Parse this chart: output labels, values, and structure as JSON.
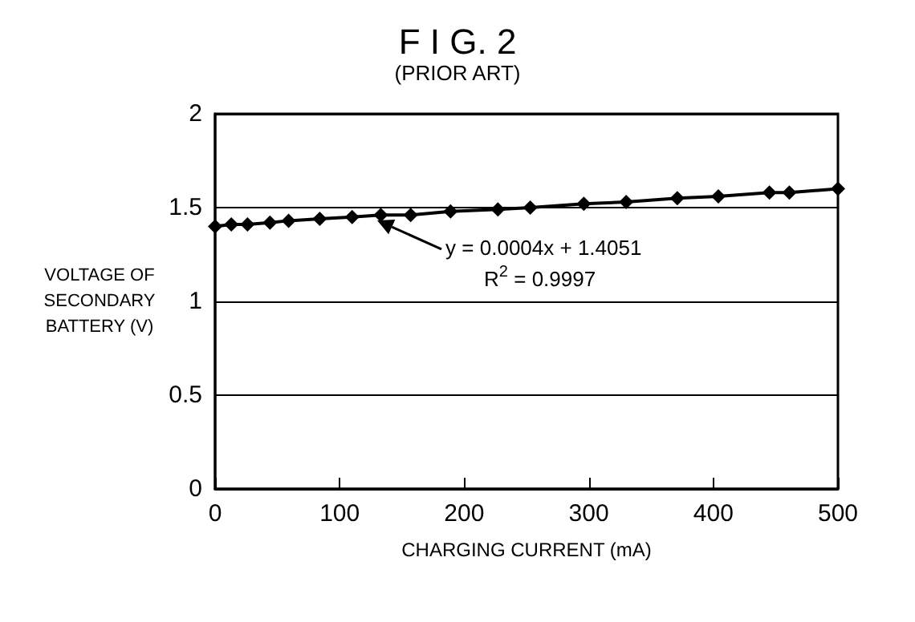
{
  "chart_data": {
    "type": "line",
    "title": "F I G. 2",
    "subtitle": "(PRIOR ART)",
    "xlabel": "CHARGING CURRENT (mA)",
    "ylabel": "VOLTAGE OF SECONDARY BATTERY (V)",
    "x": [
      0,
      13,
      26,
      44,
      59,
      84,
      110,
      133,
      157,
      189,
      227,
      253,
      296,
      330,
      371,
      404,
      445,
      461,
      500
    ],
    "series": [
      {
        "color": "#000000",
        "values": [
          1.4,
          1.41,
          1.41,
          1.42,
          1.43,
          1.44,
          1.45,
          1.46,
          1.46,
          1.48,
          1.49,
          1.5,
          1.52,
          1.53,
          1.55,
          1.56,
          1.58,
          1.58,
          1.6
        ]
      }
    ],
    "xlim": [
      0,
      500
    ],
    "xticks": [
      0,
      100,
      200,
      300,
      400,
      500
    ],
    "ylim": [
      0,
      2
    ],
    "yticks": [
      0,
      0.5,
      1,
      1.5,
      2
    ],
    "grid": "y",
    "marker": "diamond",
    "line_style": "solid",
    "annotations": [
      "y = 0.0004x + 1.4051",
      "R$^{2}$ = 0.9997"
    ]
  }
}
